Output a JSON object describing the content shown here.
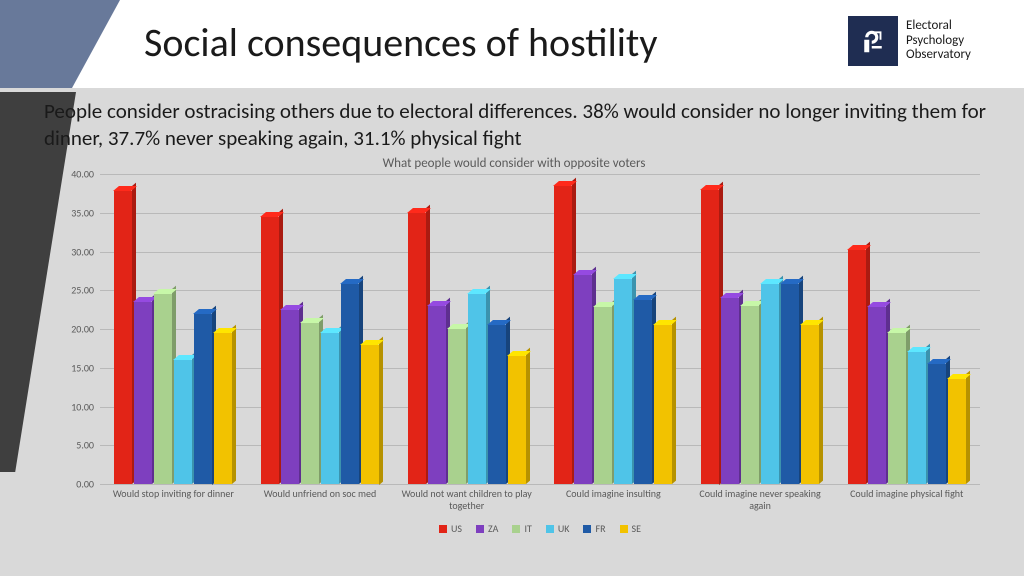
{
  "slide": {
    "title": "Social consequences of hostility",
    "subtitle": "People consider ostracising others due to electoral differences. 38% would consider no longer inviting them for dinner, 37.7% never speaking again, 31.1% physical fight",
    "brand": {
      "line1": "Electoral",
      "line2": "Psychology",
      "line3": "Observatory",
      "badge_bg": "#1f2d52"
    }
  },
  "chart": {
    "type": "bar",
    "title": "What people would consider with opposite voters",
    "ylim": [
      0,
      40
    ],
    "ytick_step": 5,
    "grid_color": "#b9b9b9",
    "background": "#d9d9d9",
    "axis_font_size": 10,
    "title_font_size": 13,
    "categories": [
      "Would stop inviting for dinner",
      "Would unfriend on soc med",
      "Would not want children to play together",
      "Could imagine insulting",
      "Could imagine never speaking again",
      "Could imagine physical fight"
    ],
    "series": [
      {
        "name": "US",
        "color": "#e22417"
      },
      {
        "name": "ZA",
        "color": "#7e3fbf"
      },
      {
        "name": "IT",
        "color": "#a9d18e"
      },
      {
        "name": "UK",
        "color": "#4fc4e8"
      },
      {
        "name": "FR",
        "color": "#1f5aa6"
      },
      {
        "name": "SE",
        "color": "#f2c200"
      }
    ],
    "values": [
      [
        37.8,
        23.5,
        24.5,
        16.0,
        22.0,
        19.5
      ],
      [
        34.5,
        22.5,
        20.8,
        19.5,
        25.8,
        18.0
      ],
      [
        35.0,
        23.0,
        20.0,
        24.5,
        20.5,
        16.5
      ],
      [
        38.5,
        27.0,
        22.8,
        26.5,
        23.8,
        20.5
      ],
      [
        38.0,
        24.0,
        23.0,
        25.8,
        25.8,
        20.5
      ],
      [
        30.2,
        22.8,
        19.5,
        17.0,
        15.5,
        13.5
      ]
    ]
  },
  "colors": {
    "accent_top": "#68799a",
    "accent_dark": "#3f3f3f",
    "body_bg": "#d9d9d9"
  }
}
